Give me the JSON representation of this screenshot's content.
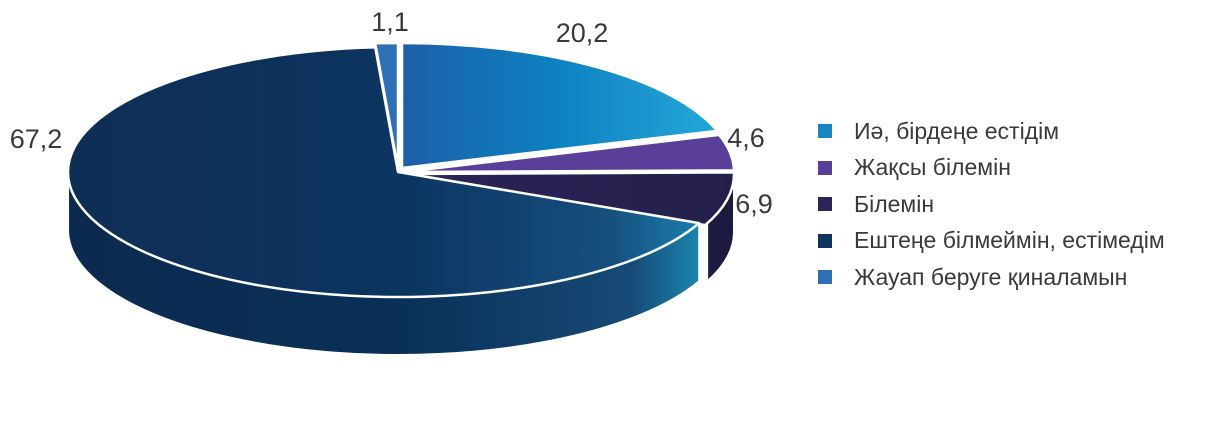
{
  "chart_data": {
    "type": "pie",
    "title": "",
    "slices": [
      {
        "label": "Иә, бірдеңе естідім",
        "value": 20.2,
        "value_text": "20,2",
        "color": "#1687bf"
      },
      {
        "label": "Жақсы білемін",
        "value": 4.6,
        "value_text": "4,6",
        "color": "#5a3f9a"
      },
      {
        "label": "Білемін",
        "value": 6.9,
        "value_text": "6,9",
        "color": "#2a2457"
      },
      {
        "label": "Ештеңе білмеймін, естімедім",
        "value": 67.2,
        "value_text": "67,2",
        "color": "#0e3560"
      },
      {
        "label": "Жауап беруге қиналамын",
        "value": 1.1,
        "value_text": "1,1",
        "color": "#2e6fb5"
      }
    ],
    "legend_position": "right",
    "style": "3d-exploded"
  }
}
